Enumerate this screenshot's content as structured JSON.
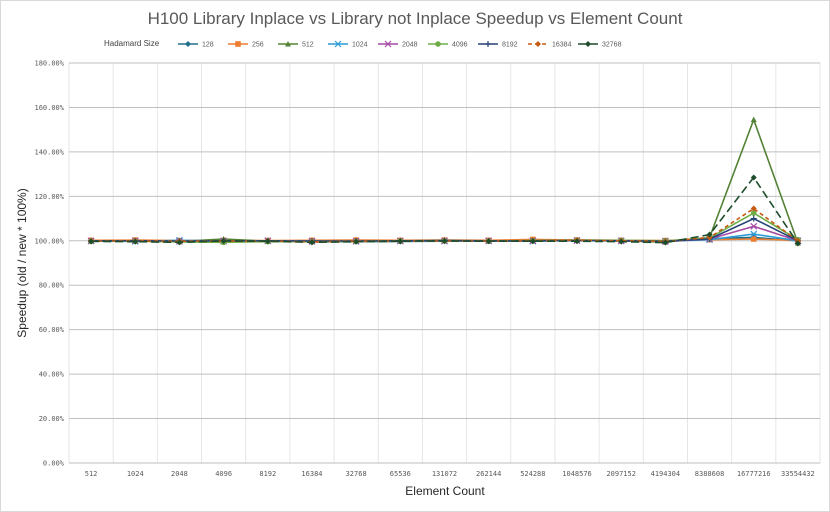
{
  "chart_data": {
    "type": "line",
    "title": "H100 Library Inplace vs Library not Inplace Speedup vs Element Count",
    "xlabel": "Element Count",
    "ylabel": "Speedup (old / new * 100%)",
    "legend_title": "Hadamard Size",
    "legend_position": "top",
    "grid": true,
    "ylim": [
      0,
      180
    ],
    "yticks": [
      0,
      20,
      40,
      60,
      80,
      100,
      120,
      140,
      160,
      180
    ],
    "ytick_labels": [
      "0.00%",
      "20.00%",
      "40.00%",
      "60.00%",
      "80.00%",
      "100.00%",
      "120.00%",
      "140.00%",
      "160.00%",
      "180.00%"
    ],
    "categories": [
      "512",
      "1024",
      "2048",
      "4096",
      "8192",
      "16384",
      "32768",
      "65536",
      "131072",
      "262144",
      "524288",
      "1048576",
      "2097152",
      "4194304",
      "8388608",
      "16777216",
      "33554432"
    ],
    "series": [
      {
        "name": "128",
        "color": "#1f6f8b",
        "dash": "",
        "marker": "diamond",
        "values": [
          100,
          99.8,
          100,
          99.6,
          100,
          99.5,
          99.6,
          99.7,
          99.8,
          100,
          100,
          100.2,
          100,
          99.6,
          101,
          101.5,
          100
        ]
      },
      {
        "name": "256",
        "color": "#ed7d31",
        "dash": "",
        "marker": "square",
        "values": [
          100.2,
          100.3,
          100.1,
          100.2,
          100.1,
          100.2,
          100.3,
          100.2,
          100.3,
          100.2,
          100.6,
          100.3,
          100.2,
          100.1,
          100.5,
          100.8,
          100.2
        ]
      },
      {
        "name": "512",
        "color": "#548235",
        "dash": "",
        "marker": "triangle",
        "values": [
          99.8,
          99.9,
          99.7,
          100.8,
          99.8,
          99.6,
          99.7,
          99.8,
          100.1,
          99.8,
          100,
          100.2,
          99.9,
          99.4,
          101.5,
          154.5,
          99
        ]
      },
      {
        "name": "1024",
        "color": "#2e9bd6",
        "dash": "",
        "marker": "x",
        "values": [
          99.9,
          99.7,
          100.2,
          99.8,
          100,
          99.8,
          99.7,
          99.9,
          99.8,
          100,
          99.8,
          100.1,
          99.9,
          99.8,
          100.5,
          103,
          100
        ]
      },
      {
        "name": "2048",
        "color": "#a64ca6",
        "dash": "",
        "marker": "x",
        "values": [
          99.9,
          100,
          99.7,
          99.9,
          100,
          99.7,
          99.8,
          99.9,
          99.9,
          100,
          100,
          100.1,
          100,
          99.7,
          100.8,
          106.5,
          100
        ]
      },
      {
        "name": "4096",
        "color": "#70ad47",
        "dash": "",
        "marker": "circle",
        "values": [
          99.8,
          99.8,
          99.5,
          99.3,
          99.6,
          99.6,
          99.7,
          100,
          99.9,
          99.9,
          100.1,
          100.3,
          100.2,
          100,
          101.3,
          112.5,
          100.5
        ]
      },
      {
        "name": "8192",
        "color": "#264478",
        "dash": "",
        "marker": "plus",
        "values": [
          100,
          100,
          99.9,
          100,
          100,
          99.9,
          99.9,
          100,
          100.1,
          100,
          100,
          100.1,
          100,
          99.8,
          100.8,
          110,
          100
        ]
      },
      {
        "name": "16384",
        "color": "#c55a11",
        "dash": "4,3",
        "marker": "diamond",
        "values": [
          99.9,
          99.9,
          99.8,
          99.9,
          99.9,
          99.5,
          99.7,
          99.9,
          99.9,
          99.9,
          100,
          100.3,
          100,
          99.7,
          101.5,
          114.5,
          100
        ]
      },
      {
        "name": "32768",
        "color": "#1e4d2b",
        "dash": "8,4",
        "marker": "diamond",
        "values": [
          99.7,
          99.6,
          99.3,
          99.9,
          99.8,
          99.3,
          99.6,
          99.8,
          99.9,
          99.8,
          99.8,
          99.8,
          99.6,
          99.2,
          102.8,
          128.5,
          98.8
        ]
      }
    ]
  }
}
